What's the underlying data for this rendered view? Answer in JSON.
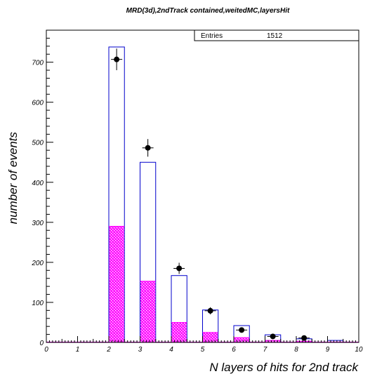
{
  "chart_data": {
    "type": "bar",
    "title": "MRD(3d),2ndTrack contained,weitedMC,layersHit",
    "xlabel": "N layers of hits for 2nd track",
    "ylabel": "number of events",
    "xlim": [
      0,
      10
    ],
    "ylim": [
      0,
      780
    ],
    "x_ticks": [
      "0",
      "1",
      "2",
      "3",
      "4",
      "5",
      "6",
      "7",
      "8",
      "9",
      "10"
    ],
    "y_ticks": [
      "0",
      "100",
      "200",
      "300",
      "400",
      "500",
      "600",
      "700"
    ],
    "stats_box": {
      "label": "Entries",
      "value": "1512"
    },
    "series": [
      {
        "type": "bar",
        "bins": [
          {
            "x0": 2.0,
            "x1": 2.5,
            "value": 738
          },
          {
            "x0": 3.0,
            "x1": 3.5,
            "value": 450
          },
          {
            "x0": 4.0,
            "x1": 4.5,
            "value": 167
          },
          {
            "x0": 5.0,
            "x1": 5.5,
            "value": 81
          },
          {
            "x0": 6.0,
            "x1": 6.5,
            "value": 42
          },
          {
            "x0": 7.0,
            "x1": 7.5,
            "value": 19
          },
          {
            "x0": 8.0,
            "x1": 8.5,
            "value": 9
          },
          {
            "x0": 9.0,
            "x1": 9.5,
            "value": 5
          }
        ]
      },
      {
        "type": "bar",
        "bins": [
          {
            "x0": 2.0,
            "x1": 2.5,
            "value": 290
          },
          {
            "x0": 3.0,
            "x1": 3.5,
            "value": 153
          },
          {
            "x0": 4.0,
            "x1": 4.5,
            "value": 50
          },
          {
            "x0": 5.0,
            "x1": 5.5,
            "value": 25
          },
          {
            "x0": 6.0,
            "x1": 6.5,
            "value": 12
          },
          {
            "x0": 7.0,
            "x1": 7.5,
            "value": 5
          },
          {
            "x0": 8.0,
            "x1": 8.5,
            "value": 3
          },
          {
            "x0": 9.0,
            "x1": 9.5,
            "value": 1
          }
        ]
      },
      {
        "type": "scatter",
        "points": [
          {
            "x": 2.25,
            "y": 707,
            "err": 27
          },
          {
            "x": 3.25,
            "y": 486,
            "err": 22
          },
          {
            "x": 4.25,
            "y": 185,
            "err": 14
          },
          {
            "x": 5.25,
            "y": 79,
            "err": 9
          },
          {
            "x": 6.25,
            "y": 31,
            "err": 6
          },
          {
            "x": 7.25,
            "y": 15,
            "err": 4
          },
          {
            "x": 8.25,
            "y": 11,
            "err": 3
          }
        ]
      }
    ],
    "colors": {
      "outline": "#0000cc",
      "fill": "#ff00ff",
      "points": "#000000"
    },
    "grid": false,
    "legend": "none"
  }
}
